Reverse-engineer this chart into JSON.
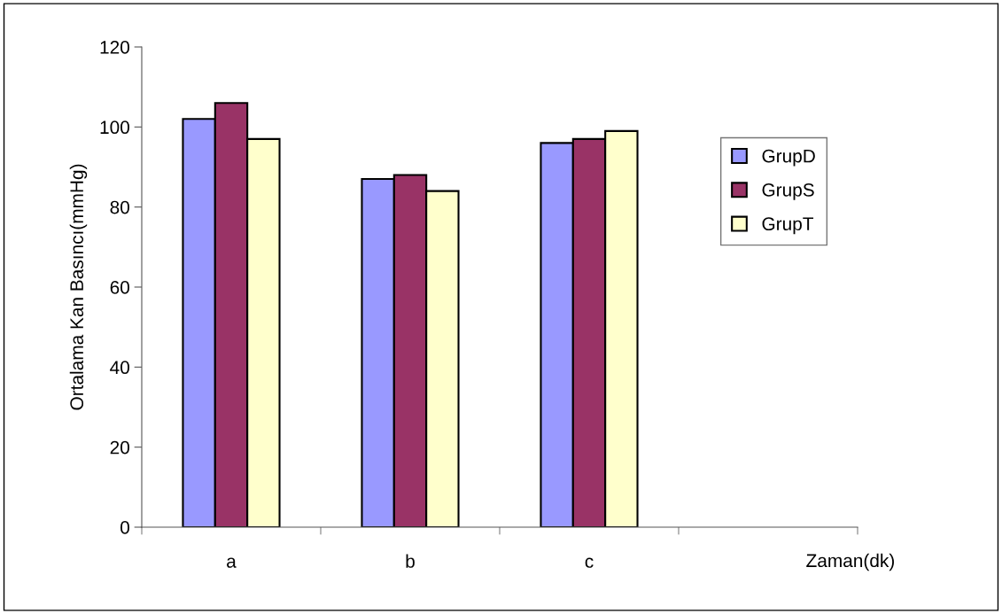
{
  "chart_data": {
    "type": "bar",
    "xlabel": "Zaman(dk)",
    "ylabel": "Ortalama Kan Basıncı(mmHg)",
    "categories": [
      "a",
      "b",
      "c",
      null
    ],
    "series": [
      {
        "name": "GrupD",
        "color": "#9999ff",
        "values": [
          102,
          87,
          96,
          null
        ]
      },
      {
        "name": "GrupS",
        "color": "#993366",
        "values": [
          106,
          88,
          97,
          null
        ]
      },
      {
        "name": "GrupT",
        "color": "#ffffcc",
        "values": [
          97,
          84,
          99,
          null
        ]
      }
    ],
    "ylim": [
      0,
      120
    ],
    "yticks": [
      0,
      20,
      40,
      60,
      80,
      100,
      120
    ],
    "grid": false,
    "legend": "top right"
  }
}
